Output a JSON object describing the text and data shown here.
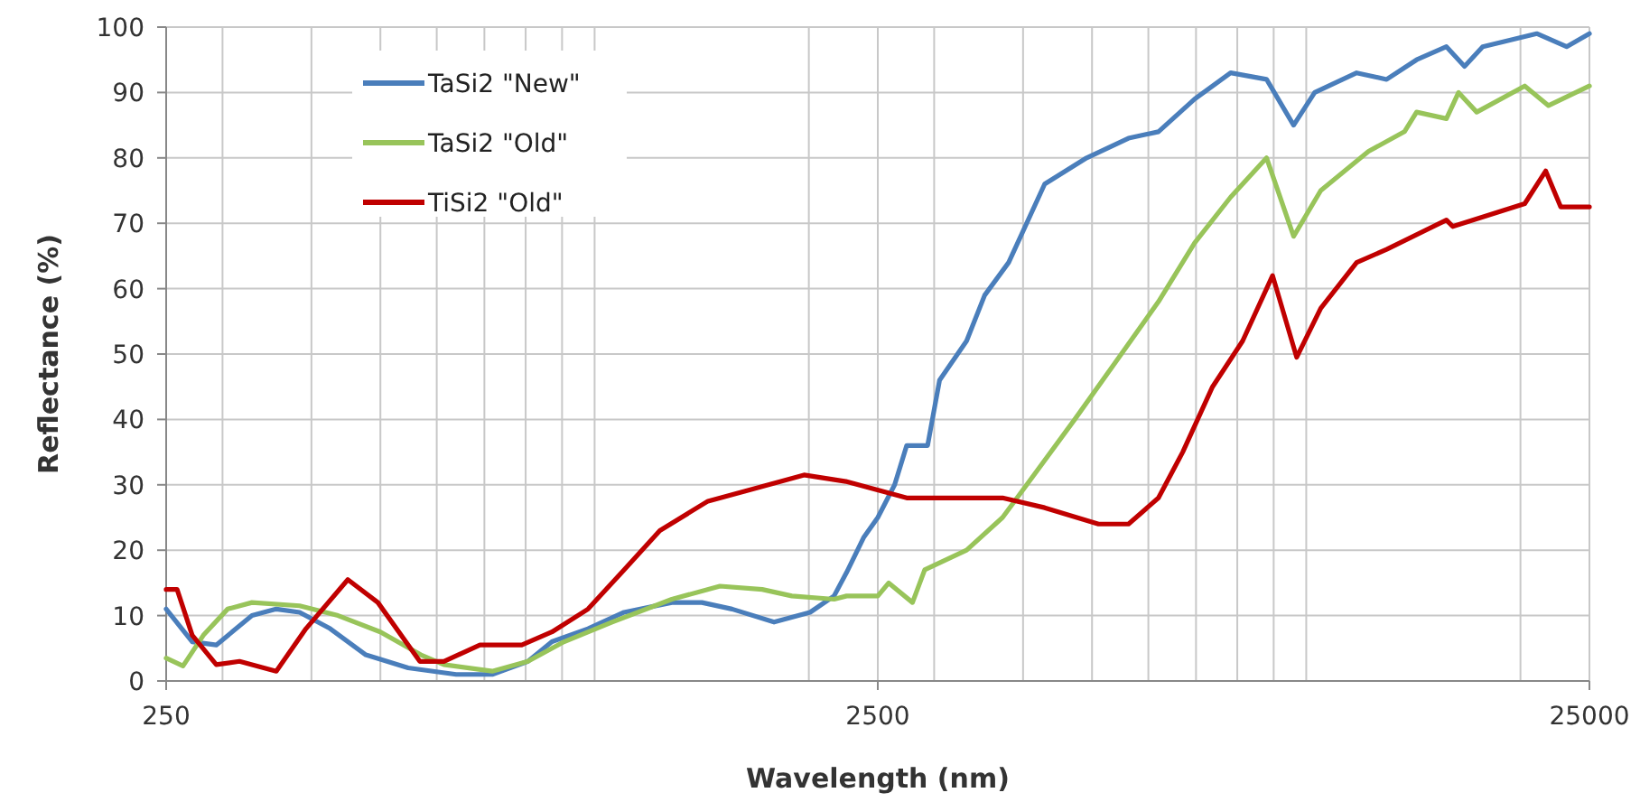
{
  "chart_data": {
    "type": "line",
    "xlabel": "Wavelength (nm)",
    "ylabel": "Reflectance (%)",
    "log": "x",
    "grid": true,
    "legend": "top left",
    "marker": "none",
    "line_style": "solid",
    "xlim": [
      250,
      25000
    ],
    "ylim": [
      0,
      100
    ],
    "xticks": [
      250,
      {
        "value": 300,
        "label": null
      },
      {
        "value": 400,
        "label": null
      },
      {
        "value": 500,
        "label": null
      },
      {
        "value": 600,
        "label": null
      },
      {
        "value": 700,
        "label": null
      },
      {
        "value": 800,
        "label": null
      },
      {
        "value": 900,
        "label": null
      },
      {
        "value": 1000,
        "label": null
      },
      {
        "value": 2000,
        "label": null
      },
      2500,
      {
        "value": 3000,
        "label": null
      },
      {
        "value": 4000,
        "label": null
      },
      {
        "value": 5000,
        "label": null
      },
      {
        "value": 6000,
        "label": null
      },
      {
        "value": 7000,
        "label": null
      },
      {
        "value": 8000,
        "label": null
      },
      {
        "value": 9000,
        "label": null
      },
      {
        "value": 10000,
        "label": null
      },
      {
        "value": 20000,
        "label": null
      },
      25000
    ],
    "yticks": [
      0,
      10,
      20,
      30,
      40,
      50,
      60,
      70,
      80,
      90,
      100
    ],
    "series": [
      {
        "name": "TaSi2 \"New\"",
        "color": "#4a7ebb",
        "x": [
          250,
          272,
          294,
          330,
          357,
          385,
          425,
          477,
          547,
          639,
          718,
          806,
          871,
          979,
          1100,
          1284,
          1415,
          1560,
          1787,
          2008,
          2170,
          2260,
          2390,
          2500,
          2640,
          2745,
          2937,
          3053,
          3332,
          3533,
          3818,
          4290,
          4914,
          5626,
          6199,
          6970,
          7830,
          8796,
          9600,
          10277,
          11772,
          12970,
          14290,
          15740,
          16690,
          17700,
          21080,
          23220,
          25000
        ],
        "values": [
          11,
          6,
          5.5,
          10,
          11,
          10.5,
          8,
          4,
          2,
          1,
          1,
          3,
          6,
          8,
          10.5,
          12,
          12,
          11,
          9,
          10.5,
          13,
          16.6,
          22,
          25,
          30,
          36,
          36,
          46,
          52,
          59,
          64,
          76,
          80,
          83,
          84,
          89,
          93,
          92,
          85,
          90,
          93,
          92,
          95,
          97,
          94,
          97,
          99,
          97,
          99
        ]
      },
      {
        "name": "TaSi2 \"Old\"",
        "color": "#98c45a",
        "x": [
          250,
          264,
          282,
          305,
          330,
          385,
          436,
          500,
          570,
          614,
          718,
          806,
          906,
          1058,
          1284,
          1500,
          1720,
          1893,
          2170,
          2260,
          2500,
          2590,
          2797,
          2910,
          3332,
          3743,
          4048,
          4728,
          5415,
          6199,
          6970,
          7830,
          8796,
          9600,
          10480,
          12235,
          13740,
          14290,
          15740,
          16370,
          17360,
          20280,
          21900,
          25000
        ],
        "values": [
          3.5,
          2.3,
          7,
          11,
          12,
          11.5,
          10,
          7.5,
          4,
          2.5,
          1.5,
          3,
          6,
          9,
          12.5,
          14.5,
          14,
          13,
          12.5,
          13,
          13,
          15,
          12,
          17,
          20,
          25,
          30,
          40,
          49,
          58,
          67,
          74,
          80,
          68,
          75,
          81,
          84,
          87,
          86,
          90,
          87,
          91,
          88,
          91
        ]
      },
      {
        "name": "TiSi2 \"Old\"",
        "color": "#c00000",
        "x": [
          250,
          259,
          272,
          294,
          317,
          357,
          393,
          450,
          496,
          568,
          614,
          690,
          790,
          871,
          979,
          1100,
          1235,
          1443,
          1686,
          1969,
          2255,
          2260,
          2539,
          2745,
          3743,
          4290,
          5106,
          5626,
          6199,
          6705,
          7385,
          8140,
          8968,
          9695,
          10480,
          11772,
          12970,
          15740,
          16063,
          20280,
          21700,
          22780,
          25000
        ],
        "values": [
          14,
          14,
          7,
          2.5,
          3,
          1.5,
          8,
          15.5,
          12,
          3,
          3,
          5.5,
          5.5,
          7.5,
          11,
          17,
          23,
          27.5,
          29.5,
          31.5,
          30.5,
          30.5,
          29,
          28,
          28,
          26.5,
          24,
          24,
          28,
          35,
          45,
          52,
          62,
          49.5,
          57,
          64,
          66,
          70.5,
          69.5,
          73,
          78,
          72.5,
          72.5
        ]
      }
    ]
  }
}
